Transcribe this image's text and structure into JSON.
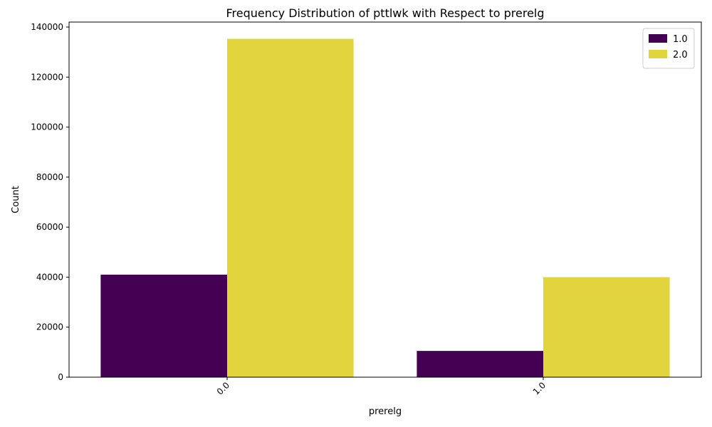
{
  "chart_data": {
    "type": "bar",
    "title": "Frequency Distribution of pttlwk with Respect to prerelg",
    "xlabel": "prerelg",
    "ylabel": "Count",
    "categories": [
      "0.0",
      "1.0"
    ],
    "series": [
      {
        "name": "1.0",
        "values": [
          41000,
          10500
        ],
        "color": "#440154"
      },
      {
        "name": "2.0",
        "values": [
          135300,
          40000
        ],
        "color": "#e2d43d"
      }
    ],
    "ylim": [
      0,
      142000
    ],
    "yticks": [
      0,
      20000,
      40000,
      60000,
      80000,
      100000,
      120000,
      140000
    ],
    "ytick_labels": [
      "0",
      "20000",
      "40000",
      "60000",
      "80000",
      "100000",
      "120000",
      "140000"
    ],
    "legend_position": "top-right",
    "grid": false
  }
}
